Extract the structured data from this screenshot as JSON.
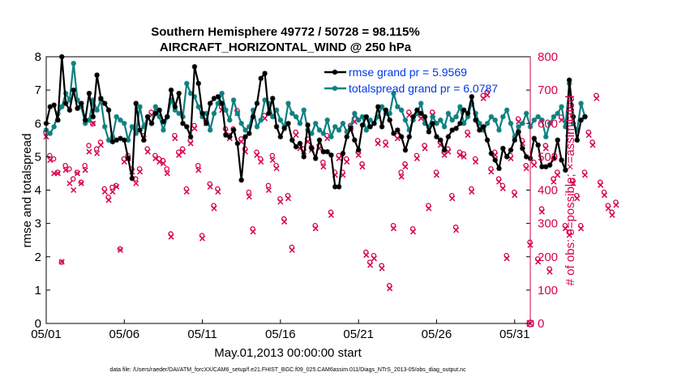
{
  "chart_data": {
    "type": "line",
    "title": [
      "Southern Hemisphere 49772 / 50728 = 98.115%",
      "AIRCRAFT_HORIZONTAL_WIND @ 250 hPa"
    ],
    "xlabel": "May.01,2013 00:00:00 start",
    "ylabel": "rmse and totalspread",
    "y2label": "# of obs: o=possible; ×=assimilated",
    "footnote": "data file: /Users/raeder/DAI/ATM_forcXX/CAM6_setup/f.e21.FHIST_BGC.f09_025.CAM6assim.011/Diags_NTrS_2013-05/obs_diag_output.nc",
    "xticks": [
      "05/01",
      "05/06",
      "05/11",
      "05/16",
      "05/21",
      "05/26",
      "05/31"
    ],
    "xlim": [
      1,
      32
    ],
    "ylim": [
      0,
      8
    ],
    "y2lim": [
      0,
      800
    ],
    "yticks": [
      0,
      1,
      2,
      3,
      4,
      5,
      6,
      7,
      8
    ],
    "y2ticks": [
      0,
      100,
      200,
      300,
      400,
      500,
      600,
      700,
      800
    ],
    "grid": false,
    "legend_position": "top-right",
    "x_step_days": 0.25,
    "series": [
      {
        "name": "rmse grand pr = 5.9569",
        "axis": "left",
        "color": "#000000",
        "marker": "star",
        "values": [
          6.0,
          6.5,
          6.55,
          6.1,
          8.0,
          6.6,
          6.4,
          7.0,
          6.45,
          6.6,
          6.1,
          6.9,
          6.2,
          7.45,
          6.75,
          6.6,
          6.4,
          5.45,
          5.5,
          5.55,
          5.5,
          4.95,
          4.35,
          6.6,
          5.8,
          5.5,
          6.2,
          6.0,
          6.3,
          6.4,
          6.05,
          6.2,
          7.0,
          6.5,
          6.9,
          6.0,
          5.9,
          5.6,
          7.7,
          7.2,
          6.3,
          6.0,
          6.6,
          6.75,
          6.8,
          6.6,
          5.65,
          5.6,
          5.8,
          5.4,
          4.3,
          5.6,
          5.7,
          6.2,
          6.6,
          7.35,
          7.5,
          6.3,
          6.75,
          5.9,
          5.6,
          5.85,
          6.0,
          5.5,
          5.3,
          5.4,
          5.0,
          5.95,
          5.25,
          4.95,
          5.5,
          5.15,
          5.15,
          5.05,
          4.1,
          4.1,
          5.1,
          5.6,
          5.85,
          5.5,
          5.2,
          5.95,
          6.2,
          5.9,
          6.0,
          6.5,
          5.9,
          6.4,
          6.1,
          5.7,
          5.8,
          5.6,
          5.2,
          5.6,
          6.2,
          6.4,
          6.3,
          6.2,
          5.75,
          6.0,
          5.6,
          5.5,
          5.2,
          5.6,
          5.8,
          5.85,
          6.0,
          6.4,
          6.3,
          6.8,
          6.1,
          5.8,
          5.9,
          5.5,
          5.1,
          4.9,
          4.65,
          5.25,
          5.0,
          5.2,
          5.5,
          5.75,
          5.25,
          5.0,
          4.95,
          5.55,
          5.35,
          4.7,
          4.7,
          4.75,
          4.95,
          5.5,
          4.9,
          4.6,
          7.3,
          6.2,
          5.5,
          6.1,
          6.2
        ]
      },
      {
        "name": "totalspread grand pr = 6.0787",
        "axis": "left",
        "color": "#0f8080",
        "marker": "star",
        "values": [
          5.8,
          5.7,
          5.9,
          6.3,
          6.5,
          6.9,
          6.7,
          7.8,
          6.7,
          6.5,
          6.0,
          6.1,
          6.7,
          6.4,
          6.7,
          5.9,
          5.5,
          5.6,
          6.2,
          6.1,
          6.0,
          5.5,
          5.9,
          5.7,
          6.5,
          5.9,
          6.2,
          6.0,
          6.5,
          6.2,
          5.8,
          6.2,
          6.7,
          6.4,
          6.3,
          6.2,
          7.2,
          6.9,
          6.8,
          6.5,
          6.2,
          6.3,
          5.8,
          6.3,
          6.6,
          6.9,
          6.4,
          6.1,
          6.7,
          6.3,
          6.0,
          5.8,
          5.9,
          6.4,
          5.9,
          6.1,
          6.7,
          6.6,
          6.2,
          6.4,
          6.1,
          5.9,
          6.6,
          6.3,
          6.2,
          6.0,
          6.4,
          5.8,
          5.7,
          6.0,
          5.8,
          5.7,
          6.1,
          5.6,
          5.9,
          5.8,
          6.0,
          5.75,
          5.9,
          6.3,
          6.1,
          6.2,
          5.8,
          6.1,
          6.0,
          6.2,
          6.5,
          6.3,
          6.3,
          6.9,
          6.5,
          6.4,
          6.1,
          5.8,
          6.1,
          6.3,
          6.6,
          6.0,
          5.9,
          6.2,
          6.0,
          6.1,
          5.9,
          6.3,
          6.1,
          6.2,
          6.5,
          6.0,
          6.2,
          6.6,
          6.3,
          6.0,
          5.8,
          6.0,
          6.2,
          6.1,
          5.8,
          6.2,
          6.4,
          6.0,
          5.6,
          5.9,
          6.0,
          6.3,
          5.9,
          6.1,
          6.2,
          6.1,
          5.6,
          6.0,
          6.2,
          6.3,
          6.5,
          5.9,
          7.2,
          6.0,
          5.8,
          6.6,
          6.2
        ]
      }
    ],
    "obs_possible": {
      "axis": "right",
      "color": "#d6004f",
      "marker": "circle",
      "values": [
        570,
        500,
        490,
        450,
        180,
        470,
        460,
        430,
        450,
        420,
        470,
        530,
        595,
        520,
        540,
        400,
        375,
        405,
        410,
        220,
        490,
        500,
        460,
        430,
        460,
        560,
        520,
        630,
        500,
        490,
        485,
        460,
        265,
        560,
        510,
        520,
        400,
        545,
        590,
        470,
        260,
        605,
        415,
        350,
        400,
        645,
        580,
        560,
        580,
        635,
        550,
        520,
        390,
        280,
        510,
        490,
        620,
        410,
        500,
        470,
        370,
        310,
        380,
        225,
        570,
        530,
        520,
        550,
        525,
        290,
        530,
        480,
        560,
        330,
        450,
        500,
        450,
        490,
        590,
        610,
        510,
        475,
        210,
        180,
        200,
        545,
        170,
        540,
        110,
        290,
        560,
        450,
        475,
        630,
        280,
        500,
        620,
        530,
        350,
        630,
        450,
        540,
        510,
        520,
        380,
        285,
        510,
        505,
        570,
        400,
        490,
        590,
        680,
        690,
        460,
        510,
        430,
        410,
        200,
        500,
        390,
        610,
        545,
        470,
        240,
        480,
        190,
        340,
        530,
        160,
        430,
        450,
        615,
        290,
        270,
        425,
        380,
        290,
        450,
        570,
        540,
        680,
        420,
        390,
        350,
        330,
        360
      ]
    },
    "obs_assimilated": {
      "axis": "right",
      "color": "#d6004f",
      "marker": "cross",
      "values": [
        560,
        490,
        450,
        450,
        185,
        460,
        420,
        400,
        450,
        420,
        460,
        515,
        600,
        510,
        535,
        395,
        370,
        395,
        410,
        220,
        485,
        495,
        455,
        420,
        455,
        555,
        515,
        625,
        495,
        485,
        480,
        450,
        260,
        555,
        505,
        515,
        395,
        540,
        585,
        460,
        255,
        600,
        410,
        345,
        395,
        640,
        575,
        555,
        575,
        630,
        545,
        515,
        380,
        275,
        505,
        485,
        615,
        400,
        490,
        465,
        365,
        305,
        375,
        220,
        565,
        525,
        515,
        545,
        520,
        285,
        525,
        470,
        555,
        325,
        445,
        495,
        445,
        485,
        585,
        605,
        505,
        470,
        205,
        175,
        195,
        540,
        165,
        535,
        105,
        285,
        555,
        440,
        470,
        625,
        275,
        495,
        615,
        525,
        345,
        625,
        445,
        535,
        505,
        515,
        375,
        280,
        505,
        500,
        565,
        395,
        485,
        585,
        675,
        685,
        455,
        505,
        425,
        405,
        195,
        495,
        385,
        605,
        540,
        465,
        235,
        475,
        185,
        335,
        525,
        155,
        425,
        445,
        610,
        285,
        265,
        420,
        375,
        285,
        445,
        565,
        535,
        675,
        415,
        385,
        345,
        325,
        355
      ]
    }
  }
}
